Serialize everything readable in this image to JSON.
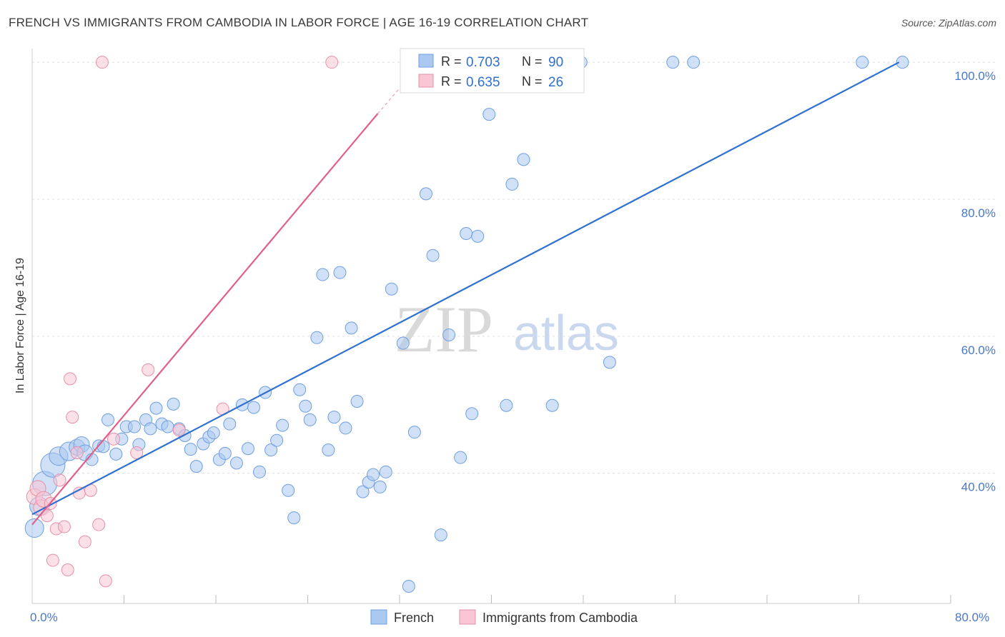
{
  "title": "FRENCH VS IMMIGRANTS FROM CAMBODIA IN LABOR FORCE | AGE 16-19 CORRELATION CHART",
  "source": "Source: ZipAtlas.com",
  "watermark": {
    "zip": "ZIP",
    "atlas": "atlas"
  },
  "colors": {
    "blue": "#3070d0",
    "blue_fill": "#aac8f0",
    "pink": "#e0608a",
    "pink_fill": "#f4b8c8",
    "tick": "#4a78c9"
  },
  "legend": {
    "rows": [
      {
        "r_label": "R = ",
        "r_value": "0.703",
        "n_label": "N = ",
        "n_value": "90"
      },
      {
        "r_label": "R = ",
        "r_value": "0.635",
        "n_label": "N = ",
        "n_value": "26"
      }
    ]
  },
  "bottom_legend": [
    "French",
    "Immigrants from Cambodia"
  ],
  "chart_data": {
    "type": "scatter",
    "title": "FRENCH VS IMMIGRANTS FROM CAMBODIA IN LABOR FORCE | AGE 16-19 CORRELATION CHART",
    "xlabel": "",
    "ylabel": "In Labor Force | Age 16-19",
    "xlim": [
      0,
      80
    ],
    "ylim": [
      21,
      102
    ],
    "x_tick_labels": [
      "0.0%",
      "80.0%"
    ],
    "y_ticks": [
      40,
      60,
      80,
      100
    ],
    "y_tick_labels": [
      "40.0%",
      "60.0%",
      "80.0%",
      "100.0%"
    ],
    "series": [
      {
        "name": "French",
        "R": 0.703,
        "N": 90,
        "trend": {
          "x": [
            0,
            75.5
          ],
          "y": [
            34.0,
            100.0
          ]
        },
        "points": [
          {
            "x": 0.2,
            "y": 32.0,
            "s": 3
          },
          {
            "x": 0.6,
            "y": 35.2,
            "s": 3
          },
          {
            "x": 1.1,
            "y": 38.5,
            "s": 4
          },
          {
            "x": 1.8,
            "y": 41.2,
            "s": 4
          },
          {
            "x": 2.3,
            "y": 42.5,
            "s": 3
          },
          {
            "x": 3.2,
            "y": 43.2,
            "s": 3
          },
          {
            "x": 3.9,
            "y": 43.8,
            "s": 2
          },
          {
            "x": 4.3,
            "y": 44.2,
            "s": 2
          },
          {
            "x": 4.6,
            "y": 43.0,
            "s": 2
          },
          {
            "x": 5.2,
            "y": 42.0,
            "s": 1
          },
          {
            "x": 5.8,
            "y": 44.0,
            "s": 1
          },
          {
            "x": 6.2,
            "y": 43.9,
            "s": 1
          },
          {
            "x": 6.6,
            "y": 47.8,
            "s": 1
          },
          {
            "x": 7.3,
            "y": 42.8,
            "s": 1
          },
          {
            "x": 7.8,
            "y": 45.0,
            "s": 1
          },
          {
            "x": 8.2,
            "y": 46.8,
            "s": 1
          },
          {
            "x": 8.9,
            "y": 46.8,
            "s": 1
          },
          {
            "x": 9.3,
            "y": 44.2,
            "s": 1
          },
          {
            "x": 9.9,
            "y": 47.8,
            "s": 1
          },
          {
            "x": 10.3,
            "y": 46.5,
            "s": 1
          },
          {
            "x": 10.8,
            "y": 49.5,
            "s": 1
          },
          {
            "x": 11.3,
            "y": 47.2,
            "s": 1
          },
          {
            "x": 11.8,
            "y": 46.8,
            "s": 1
          },
          {
            "x": 12.3,
            "y": 50.1,
            "s": 1
          },
          {
            "x": 12.8,
            "y": 46.5,
            "s": 1
          },
          {
            "x": 13.3,
            "y": 45.5,
            "s": 1
          },
          {
            "x": 13.8,
            "y": 43.5,
            "s": 1
          },
          {
            "x": 14.3,
            "y": 41.0,
            "s": 1
          },
          {
            "x": 14.9,
            "y": 44.3,
            "s": 1
          },
          {
            "x": 15.4,
            "y": 45.3,
            "s": 1
          },
          {
            "x": 15.8,
            "y": 45.9,
            "s": 1
          },
          {
            "x": 16.3,
            "y": 42.0,
            "s": 1
          },
          {
            "x": 16.8,
            "y": 42.9,
            "s": 1
          },
          {
            "x": 17.2,
            "y": 47.2,
            "s": 1
          },
          {
            "x": 17.8,
            "y": 41.5,
            "s": 1
          },
          {
            "x": 18.3,
            "y": 50.0,
            "s": 1
          },
          {
            "x": 18.8,
            "y": 43.6,
            "s": 1
          },
          {
            "x": 19.3,
            "y": 49.6,
            "s": 1
          },
          {
            "x": 19.8,
            "y": 40.2,
            "s": 1
          },
          {
            "x": 20.3,
            "y": 51.8,
            "s": 1
          },
          {
            "x": 20.8,
            "y": 43.4,
            "s": 1
          },
          {
            "x": 21.3,
            "y": 44.8,
            "s": 1
          },
          {
            "x": 21.8,
            "y": 47.0,
            "s": 1
          },
          {
            "x": 22.3,
            "y": 37.5,
            "s": 1
          },
          {
            "x": 22.8,
            "y": 33.5,
            "s": 1
          },
          {
            "x": 23.3,
            "y": 52.2,
            "s": 1
          },
          {
            "x": 23.8,
            "y": 49.8,
            "s": 1
          },
          {
            "x": 24.2,
            "y": 47.8,
            "s": 1
          },
          {
            "x": 24.8,
            "y": 59.8,
            "s": 1
          },
          {
            "x": 25.3,
            "y": 69.0,
            "s": 1
          },
          {
            "x": 25.8,
            "y": 43.4,
            "s": 1
          },
          {
            "x": 26.3,
            "y": 48.2,
            "s": 1
          },
          {
            "x": 26.8,
            "y": 69.3,
            "s": 1
          },
          {
            "x": 27.3,
            "y": 46.6,
            "s": 1
          },
          {
            "x": 27.8,
            "y": 61.2,
            "s": 1
          },
          {
            "x": 28.3,
            "y": 50.5,
            "s": 1
          },
          {
            "x": 28.8,
            "y": 37.3,
            "s": 1
          },
          {
            "x": 29.3,
            "y": 38.7,
            "s": 1
          },
          {
            "x": 29.7,
            "y": 39.8,
            "s": 1
          },
          {
            "x": 30.3,
            "y": 38.0,
            "s": 1
          },
          {
            "x": 30.8,
            "y": 40.2,
            "s": 1
          },
          {
            "x": 31.3,
            "y": 66.9,
            "s": 1
          },
          {
            "x": 32.3,
            "y": 59.0,
            "s": 1
          },
          {
            "x": 32.8,
            "y": 23.5,
            "s": 1
          },
          {
            "x": 33.3,
            "y": 46.0,
            "s": 1
          },
          {
            "x": 34.3,
            "y": 80.8,
            "s": 1
          },
          {
            "x": 34.9,
            "y": 71.8,
            "s": 1
          },
          {
            "x": 35.6,
            "y": 31.0,
            "s": 1
          },
          {
            "x": 36.3,
            "y": 60.2,
            "s": 1
          },
          {
            "x": 37.3,
            "y": 42.3,
            "s": 1
          },
          {
            "x": 37.8,
            "y": 75.0,
            "s": 1
          },
          {
            "x": 38.3,
            "y": 48.7,
            "s": 1
          },
          {
            "x": 38.8,
            "y": 74.6,
            "s": 1
          },
          {
            "x": 39.8,
            "y": 92.4,
            "s": 1
          },
          {
            "x": 41.3,
            "y": 49.9,
            "s": 1
          },
          {
            "x": 41.8,
            "y": 82.2,
            "s": 1
          },
          {
            "x": 42.8,
            "y": 85.8,
            "s": 1
          },
          {
            "x": 45.3,
            "y": 49.9,
            "s": 1
          },
          {
            "x": 47.3,
            "y": 100.0,
            "s": 1
          },
          {
            "x": 47.8,
            "y": 100.0,
            "s": 1
          },
          {
            "x": 50.3,
            "y": 56.2,
            "s": 1
          },
          {
            "x": 55.8,
            "y": 100.0,
            "s": 1
          },
          {
            "x": 57.6,
            "y": 100.0,
            "s": 1
          },
          {
            "x": 72.3,
            "y": 100.0,
            "s": 1
          },
          {
            "x": 75.8,
            "y": 100.0,
            "s": 1
          }
        ]
      },
      {
        "name": "Immigrants from Cambodia",
        "R": 0.635,
        "N": 26,
        "trend": {
          "x": [
            0,
            30.1
          ],
          "y": [
            32.5,
            92.5
          ]
        },
        "trend_dashed": {
          "x": [
            30.1,
            34.7
          ],
          "y": [
            92.5,
            101.5
          ]
        },
        "points": [
          {
            "x": 0.2,
            "y": 36.6,
            "s": 2
          },
          {
            "x": 0.5,
            "y": 37.8,
            "s": 2
          },
          {
            "x": 0.8,
            "y": 35.0,
            "s": 2
          },
          {
            "x": 1.0,
            "y": 36.2,
            "s": 2
          },
          {
            "x": 1.3,
            "y": 33.8,
            "s": 1
          },
          {
            "x": 1.6,
            "y": 35.6,
            "s": 1
          },
          {
            "x": 1.8,
            "y": 27.3,
            "s": 1
          },
          {
            "x": 2.1,
            "y": 31.9,
            "s": 1
          },
          {
            "x": 2.4,
            "y": 39.0,
            "s": 1
          },
          {
            "x": 2.8,
            "y": 32.2,
            "s": 1
          },
          {
            "x": 3.1,
            "y": 25.9,
            "s": 1
          },
          {
            "x": 3.3,
            "y": 53.8,
            "s": 1
          },
          {
            "x": 3.5,
            "y": 48.2,
            "s": 1
          },
          {
            "x": 3.9,
            "y": 43.0,
            "s": 1
          },
          {
            "x": 4.1,
            "y": 37.1,
            "s": 1
          },
          {
            "x": 4.6,
            "y": 30.0,
            "s": 1
          },
          {
            "x": 5.1,
            "y": 37.5,
            "s": 1
          },
          {
            "x": 5.8,
            "y": 32.5,
            "s": 1
          },
          {
            "x": 6.1,
            "y": 100.0,
            "s": 1
          },
          {
            "x": 6.4,
            "y": 24.3,
            "s": 1
          },
          {
            "x": 7.1,
            "y": 45.0,
            "s": 1
          },
          {
            "x": 9.1,
            "y": 43.0,
            "s": 1
          },
          {
            "x": 10.1,
            "y": 55.1,
            "s": 1
          },
          {
            "x": 12.8,
            "y": 46.3,
            "s": 1
          },
          {
            "x": 16.6,
            "y": 49.4,
            "s": 1
          },
          {
            "x": 26.1,
            "y": 100.0,
            "s": 1
          }
        ]
      }
    ]
  }
}
